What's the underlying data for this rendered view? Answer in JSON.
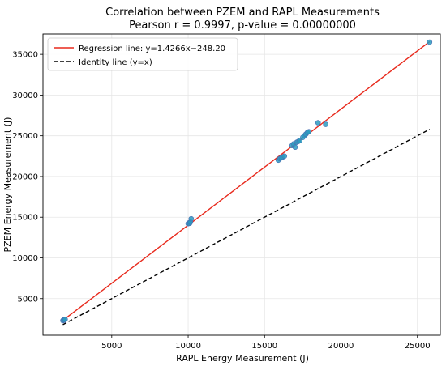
{
  "chart_data": {
    "type": "scatter",
    "title": "Correlation between PZEM and RAPL Measurements",
    "subtitle": "Pearson r = 0.9997, p-value = 0.00000000",
    "xlabel": "RAPL Energy Measurement (J)",
    "ylabel": "PZEM Energy Measurement (J)",
    "xlim": [
      500,
      26500
    ],
    "ylim": [
      500,
      37500
    ],
    "xticks": [
      5000,
      10000,
      15000,
      20000,
      25000
    ],
    "xtick_labels": [
      "5000",
      "10000",
      "15000",
      "20000",
      "25000"
    ],
    "yticks": [
      5000,
      10000,
      15000,
      20000,
      25000,
      30000,
      35000
    ],
    "ytick_labels": [
      "5000",
      "10000",
      "15000",
      "20000",
      "25000",
      "30000",
      "35000"
    ],
    "grid": true,
    "legend_position": "top-left",
    "points": {
      "x": [
        1800,
        1850,
        1900,
        1950,
        10000,
        10050,
        10100,
        10150,
        10200,
        15900,
        16000,
        16100,
        16200,
        16300,
        16800,
        16900,
        17000,
        17100,
        17200,
        17300,
        17500,
        17600,
        17700,
        17800,
        17900,
        18500,
        19000,
        25800
      ],
      "y": [
        2300,
        2400,
        2350,
        2450,
        14200,
        14300,
        14250,
        14400,
        14800,
        22000,
        22200,
        22300,
        22400,
        22500,
        23800,
        24000,
        23600,
        24200,
        24300,
        24400,
        24800,
        25000,
        25200,
        25400,
        25500,
        26600,
        26400,
        36500
      ],
      "color": "#2a9bbf"
    },
    "series": [
      {
        "name": "Regression line: y=1.4266x−248.20",
        "kind": "line",
        "color": "#e8291c",
        "style": "solid",
        "x": [
          1800,
          25800
        ],
        "y": [
          2320,
          36560
        ]
      },
      {
        "name": "Identity line (y=x)",
        "kind": "line",
        "color": "#000000",
        "style": "dashed",
        "x": [
          1800,
          25800
        ],
        "y": [
          1800,
          25800
        ]
      }
    ]
  }
}
